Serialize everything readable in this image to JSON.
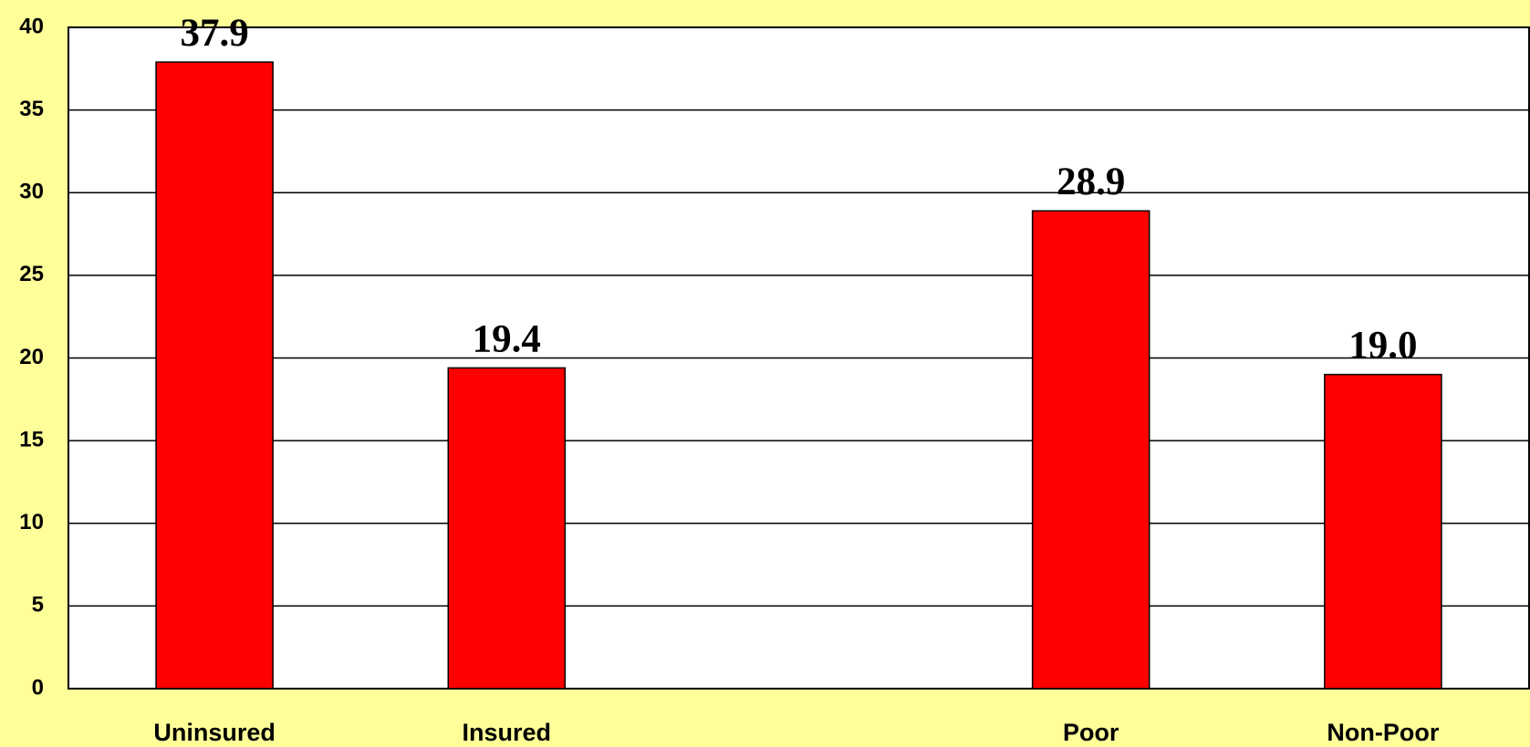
{
  "chart_data": {
    "type": "bar",
    "categories": [
      "Uninsured",
      "Insured",
      null,
      "Poor",
      "Non-Poor"
    ],
    "values": [
      37.9,
      19.4,
      null,
      28.9,
      19.0
    ],
    "value_labels": [
      "37.9",
      "19.4",
      null,
      "28.9",
      "19.0"
    ],
    "color": "#ff0000",
    "background": "#ffff99",
    "ylim": [
      0,
      40
    ],
    "yticks": [
      0,
      5,
      10,
      15,
      20,
      25,
      30,
      35,
      40
    ],
    "grid": true
  }
}
